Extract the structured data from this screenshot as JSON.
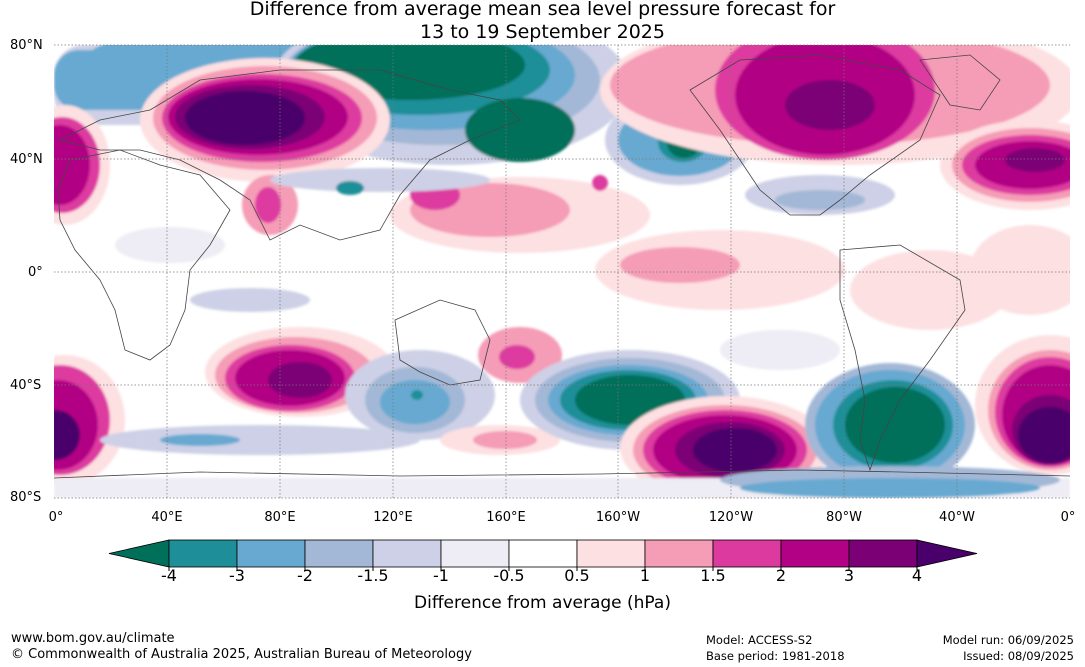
{
  "title_line1": "Difference from average mean sea level pressure forecast for",
  "title_line2": "13 to 19 September 2025",
  "map": {
    "lat_labels": [
      "80°N",
      "40°N",
      "0°",
      "40°S",
      "80°S"
    ],
    "lon_labels": [
      "0°",
      "40°E",
      "80°E",
      "120°E",
      "160°E",
      "160°W",
      "120°W",
      "80°W",
      "40°W",
      "0°"
    ],
    "extent": {
      "lon": [
        0,
        360
      ],
      "lat": [
        -80,
        80
      ]
    }
  },
  "colorbar": {
    "label": "Difference from average (hPa)",
    "tick_labels": [
      "-4",
      "-3",
      "-2",
      "-1.5",
      "-1",
      "-0.5",
      "0.5",
      "1",
      "1.5",
      "2",
      "3",
      "4"
    ],
    "colors": [
      "#00705a",
      "#1e8f98",
      "#68a9d1",
      "#a3b8d6",
      "#cdd0e6",
      "#eeecf4",
      "#ffffff",
      "#fde0e2",
      "#f59cb6",
      "#dd3aa0",
      "#b20184",
      "#7b0076",
      "#4a006a"
    ],
    "color_names": [
      "below -4",
      "-4 to -3",
      "-3 to -2",
      "-2 to -1.5",
      "-1.5 to -1",
      "-1 to -0.5",
      "-0.5 to 0.5",
      "0.5 to 1",
      "1 to 1.5",
      "1.5 to 2",
      "2 to 3",
      "3 to 4",
      "above 4"
    ]
  },
  "footer": {
    "website": "www.bom.gov.au/climate",
    "copyright": "© Commonwealth of Australia 2025, Australian Bureau of Meteorology",
    "model": "Model: ACCESS-S2",
    "base_period": "Base period: 1981-2018",
    "model_run": "Model run: 06/09/2025",
    "issued": "Issued: 08/09/2025"
  }
}
